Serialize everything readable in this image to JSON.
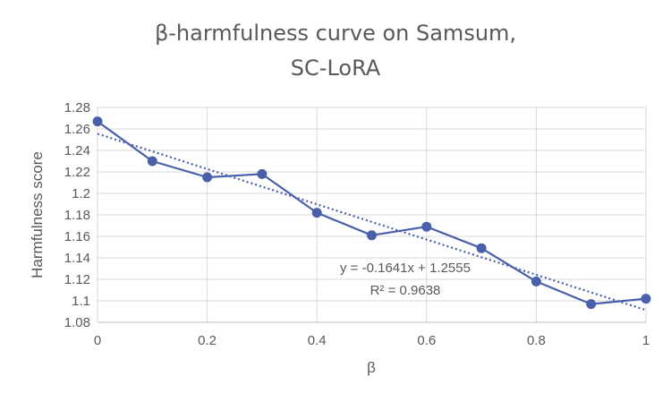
{
  "chart_data": {
    "type": "line",
    "title_lines": [
      "β-harmfulness curve on Samsum,",
      "SC-LoRA"
    ],
    "xlabel": "β",
    "ylabel": "Harmfulness score",
    "xlim": [
      0,
      1
    ],
    "ylim": [
      1.08,
      1.28
    ],
    "x_ticks": [
      "0",
      "0.2",
      "0.4",
      "0.6",
      "0.8",
      "1"
    ],
    "y_ticks": [
      "1.08",
      "1.1",
      "1.12",
      "1.14",
      "1.16",
      "1.18",
      "1.2",
      "1.22",
      "1.24",
      "1.26",
      "1.28"
    ],
    "grid": true,
    "series": [
      {
        "x": [
          0,
          0.1,
          0.2,
          0.3,
          0.4,
          0.5,
          0.6,
          0.7,
          0.8,
          0.9,
          1.0
        ],
        "y": [
          1.267,
          1.23,
          1.215,
          1.218,
          1.182,
          1.161,
          1.169,
          1.149,
          1.118,
          1.097,
          1.102
        ],
        "color": "#4a5faa"
      }
    ],
    "trendline": {
      "type": "linear",
      "slope": -0.1641,
      "intercept": 1.2555,
      "style": "dotted",
      "color": "#4a5faa"
    },
    "annotations": {
      "equation": "y = -0.1641x + 1.2555",
      "r_squared": "R² = 0.9638"
    }
  }
}
